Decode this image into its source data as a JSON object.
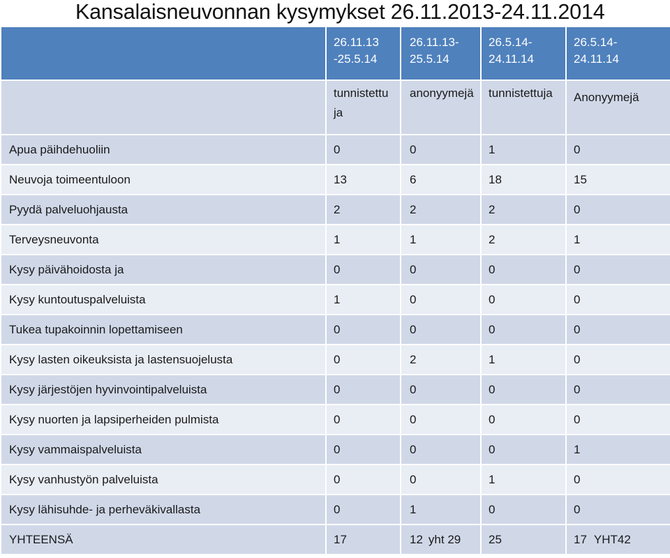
{
  "title": "Kansalaisneuvonnan kysymykset  26.11.2013-24.11.2014",
  "columns": [
    {
      "period": "26.11.13 -25.5.14",
      "type": "tunnistettuja"
    },
    {
      "period": "26.11.13-25.5.14",
      "type": "anonyymejä"
    },
    {
      "period": "26.5.14-24.11.14",
      "type": "tunnistettuja"
    },
    {
      "period": "26.5.14-24.11.14",
      "type": "Anonyymejä"
    }
  ],
  "rows": [
    {
      "topic": "Apua päihdehuoliin",
      "values": [
        "0",
        "0",
        "1",
        "0"
      ]
    },
    {
      "topic": "Neuvoja toimeentuloon",
      "values": [
        "13",
        "6",
        "18",
        "15"
      ]
    },
    {
      "topic": "Pyydä palveluohjausta",
      "values": [
        "2",
        "2",
        "2",
        "0"
      ]
    },
    {
      "topic": "Terveysneuvonta",
      "values": [
        "1",
        "1",
        "2",
        "1"
      ]
    },
    {
      "topic": "Kysy päivähoidosta ja",
      "values": [
        "0",
        "0",
        "0",
        "0"
      ]
    },
    {
      "topic": "Kysy kuntoutuspalveluista",
      "values": [
        "1",
        "0",
        "0",
        "0"
      ]
    },
    {
      "topic": "Tukea tupakoinnin lopettamiseen",
      "values": [
        "0",
        "0",
        "0",
        "0"
      ]
    },
    {
      "topic": "Kysy lasten oikeuksista ja lastensuojelusta",
      "values": [
        "0",
        "2",
        "1",
        "0"
      ]
    },
    {
      "topic": "Kysy järjestöjen hyvinvointipalveluista",
      "values": [
        "0",
        "0",
        "0",
        "0"
      ]
    },
    {
      "topic": "Kysy nuorten ja lapsiperheiden pulmista",
      "values": [
        "0",
        "0",
        "0",
        "0"
      ]
    },
    {
      "topic": "Kysy vammaispalveluista",
      "values": [
        "0",
        "0",
        "0",
        "1"
      ]
    },
    {
      "topic": "Kysy vanhustyön palveluista",
      "values": [
        "0",
        "0",
        "1",
        "0"
      ]
    },
    {
      "topic": "Kysy lähisuhde- ja perheväkivallasta",
      "values": [
        "0",
        "1",
        "0",
        "0"
      ]
    }
  ],
  "total": {
    "label": "YHTEENSÄ",
    "values": [
      "17",
      "12",
      "25",
      "17"
    ],
    "subtotal_first_half": "yht 29",
    "subtotal_second_half": "YHT42"
  }
}
